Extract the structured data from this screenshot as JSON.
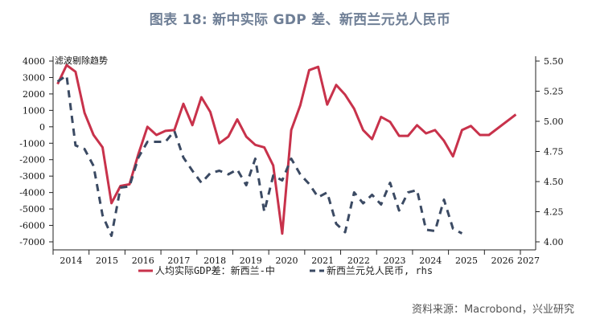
{
  "title": "图表 18: 新中实际 GDP 差、新西兰元兑人民币",
  "source": "资料来源：Macrobond，兴业研究",
  "chart_data": {
    "type": "line",
    "title": "图表 18: 新中实际 GDP 差、新西兰元兑人民币",
    "annotation": "滤波剔除趋势",
    "x_ticks": [
      "2014",
      "2015",
      "2016",
      "2017",
      "2018",
      "2019",
      "2020",
      "2021",
      "2022",
      "2023",
      "2024",
      "2025",
      "2026",
      "2027"
    ],
    "x_start": 2014.0,
    "x_end": 2027.0,
    "frequency": "quarterly",
    "y_left": {
      "ylim": [
        -7000,
        4000
      ],
      "ticks": [
        4000,
        3000,
        2000,
        1000,
        0,
        -1000,
        -2000,
        -3000,
        -4000,
        -5000,
        -6000,
        -7000
      ]
    },
    "y_right": {
      "ylim": [
        4.0,
        5.5
      ],
      "ticks": [
        "5.50",
        "5.25",
        "5.00",
        "4.75",
        "4.50",
        "4.25",
        "4.00"
      ]
    },
    "legend_position": "bottom",
    "series": [
      {
        "name": "人均实际GDP差：新西兰-中",
        "axis": "left",
        "style": "solid",
        "color": "#c8324b",
        "x": [
          2014.125,
          2014.375,
          2014.625,
          2014.875,
          2015.125,
          2015.375,
          2015.625,
          2015.875,
          2016.125,
          2016.375,
          2016.625,
          2016.875,
          2017.125,
          2017.375,
          2017.625,
          2017.875,
          2018.125,
          2018.375,
          2018.625,
          2018.875,
          2019.125,
          2019.375,
          2019.625,
          2019.875,
          2020.125,
          2020.375,
          2020.625,
          2020.875,
          2021.125,
          2021.375,
          2021.625,
          2021.875,
          2022.125,
          2022.375,
          2022.625,
          2022.875,
          2023.125,
          2023.375,
          2023.625,
          2023.875,
          2024.125,
          2024.375,
          2024.625,
          2024.875,
          2025.125,
          2025.375,
          2025.625,
          2025.875,
          2026.125,
          2026.875
        ],
        "values": [
          2600,
          3750,
          3350,
          850,
          -500,
          -1250,
          -4650,
          -3600,
          -3500,
          -1650,
          0,
          -500,
          -250,
          -200,
          1400,
          100,
          1800,
          900,
          -1000,
          -600,
          450,
          -600,
          -1100,
          -1250,
          -2350,
          -6500,
          -200,
          1300,
          3450,
          3650,
          1350,
          2550,
          1950,
          1100,
          -200,
          -750,
          600,
          300,
          -550,
          -550,
          100,
          -400,
          -200,
          -850,
          -1800,
          -200,
          50,
          -500,
          -500,
          750
        ]
      },
      {
        "name": "新西兰元兑人民币, rhs",
        "axis": "right",
        "style": "dashed",
        "color": "#3b4a63",
        "x": [
          2014.125,
          2014.375,
          2014.625,
          2014.875,
          2015.125,
          2015.375,
          2015.625,
          2015.875,
          2016.125,
          2016.375,
          2016.625,
          2016.875,
          2017.125,
          2017.375,
          2017.625,
          2017.875,
          2018.125,
          2018.375,
          2018.625,
          2018.875,
          2019.125,
          2019.375,
          2019.625,
          2019.875,
          2020.125,
          2020.375,
          2020.625,
          2020.875,
          2021.125,
          2021.375,
          2021.625,
          2021.875,
          2022.125,
          2022.375,
          2022.625,
          2022.875,
          2023.125,
          2023.375,
          2023.625,
          2023.875,
          2024.125,
          2024.375,
          2024.625,
          2024.875,
          2025.125,
          2025.375
        ],
        "values": [
          5.33,
          5.38,
          4.8,
          4.77,
          4.63,
          4.22,
          4.05,
          4.45,
          4.46,
          4.7,
          4.83,
          4.83,
          4.83,
          4.92,
          4.7,
          4.59,
          4.49,
          4.57,
          4.59,
          4.56,
          4.6,
          4.47,
          4.69,
          4.25,
          4.55,
          4.51,
          4.69,
          4.56,
          4.48,
          4.37,
          4.41,
          4.15,
          4.08,
          4.41,
          4.32,
          4.39,
          4.31,
          4.49,
          4.26,
          4.41,
          4.43,
          4.1,
          4.09,
          4.35,
          4.11,
          4.07
        ]
      }
    ]
  }
}
